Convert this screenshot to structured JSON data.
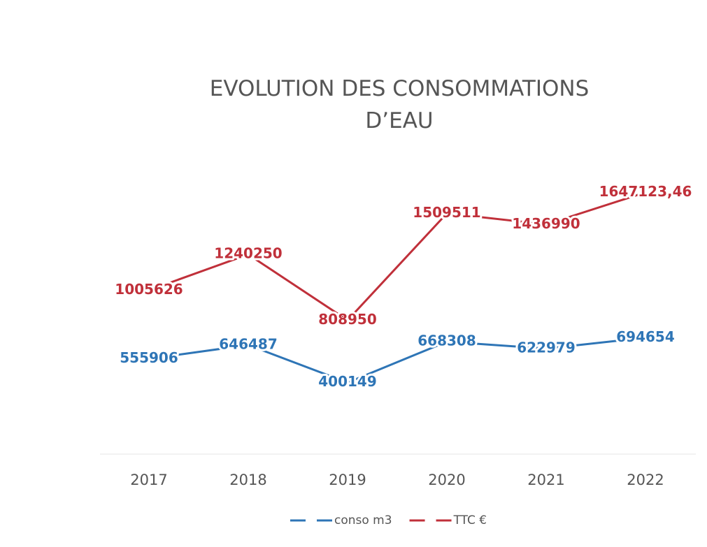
{
  "chart_data": {
    "type": "line",
    "title": "EVOLUTION DES CONSOMMATIONS D’EAU",
    "categories": [
      "2017",
      "2018",
      "2019",
      "2020",
      "2021",
      "2022"
    ],
    "series": [
      {
        "name": "conso m3",
        "color": "#2e75b6",
        "values": [
          555906,
          646487,
          400149,
          668308,
          622979,
          694654
        ]
      },
      {
        "name": "TTC €",
        "color": "#c0303a",
        "values": [
          1005626,
          1240250,
          808950,
          1509511,
          1436990,
          1647123.46
        ],
        "value_labels": [
          "1005626",
          "1240250",
          "808950",
          "1509511",
          "1436990",
          "1647123,46"
        ]
      }
    ],
    "ylim": [
      0,
      1800000
    ]
  }
}
